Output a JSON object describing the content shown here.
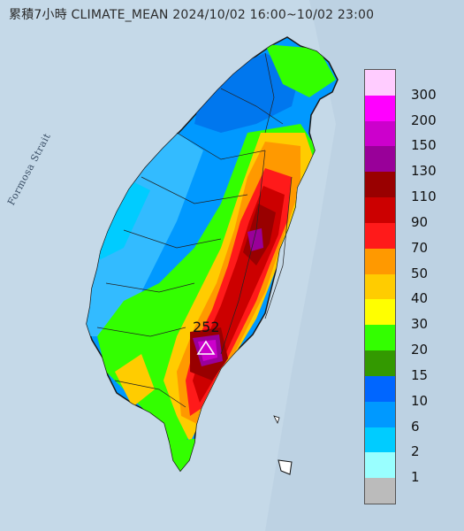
{
  "title": "累積7小時 CLIMATE_MEAN 2024/10/02 16:00~10/02 23:00",
  "sea_label": "Formosa Strait",
  "peak": {
    "value": "252",
    "marker": "triangle-icon"
  },
  "legend": [
    {
      "label": "300",
      "color": "#ffccff"
    },
    {
      "label": "200",
      "color": "#ff00ff"
    },
    {
      "label": "150",
      "color": "#cc00cc"
    },
    {
      "label": "130",
      "color": "#990099"
    },
    {
      "label": "110",
      "color": "#990000"
    },
    {
      "label": "90",
      "color": "#cc0000"
    },
    {
      "label": "70",
      "color": "#ff1a1a"
    },
    {
      "label": "50",
      "color": "#ff9900"
    },
    {
      "label": "40",
      "color": "#ffcc00"
    },
    {
      "label": "30",
      "color": "#ffff00"
    },
    {
      "label": "20",
      "color": "#33ff00"
    },
    {
      "label": "15",
      "color": "#339900"
    },
    {
      "label": "10",
      "color": "#0066ff"
    },
    {
      "label": "6",
      "color": "#0099ff"
    },
    {
      "label": "2",
      "color": "#00ccff"
    },
    {
      "label": "1",
      "color": "#99ffff"
    },
    {
      "label": "",
      "color": "#bbbbbb"
    }
  ],
  "colors": {
    "sea": "#c5d9e8",
    "land_low": "#0099ff",
    "land_mid": "#33ff00"
  }
}
